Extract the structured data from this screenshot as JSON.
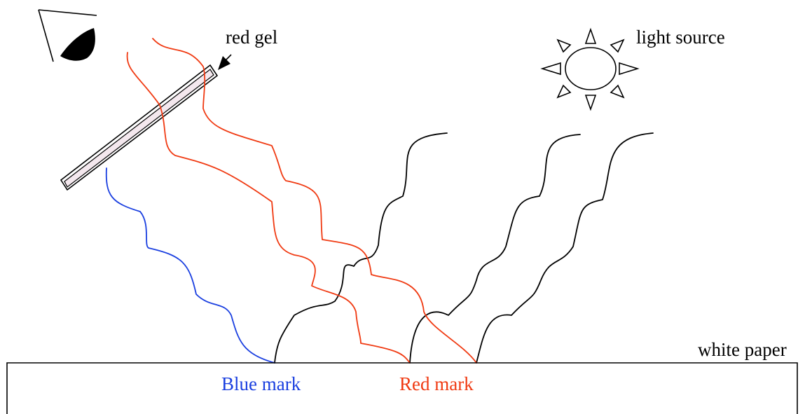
{
  "labels": {
    "red_gel": "red gel",
    "light_source": "light source",
    "white_paper": "white paper",
    "blue_mark": "Blue mark",
    "red_mark": "Red mark"
  },
  "colors": {
    "blue": "#1a3fe0",
    "red": "#f03a12",
    "black": "#000000",
    "gel_fill": "#f4e8ee"
  },
  "icons": {
    "eye": "eye-icon",
    "sun": "sun-icon",
    "arrow": "arrow-icon"
  }
}
